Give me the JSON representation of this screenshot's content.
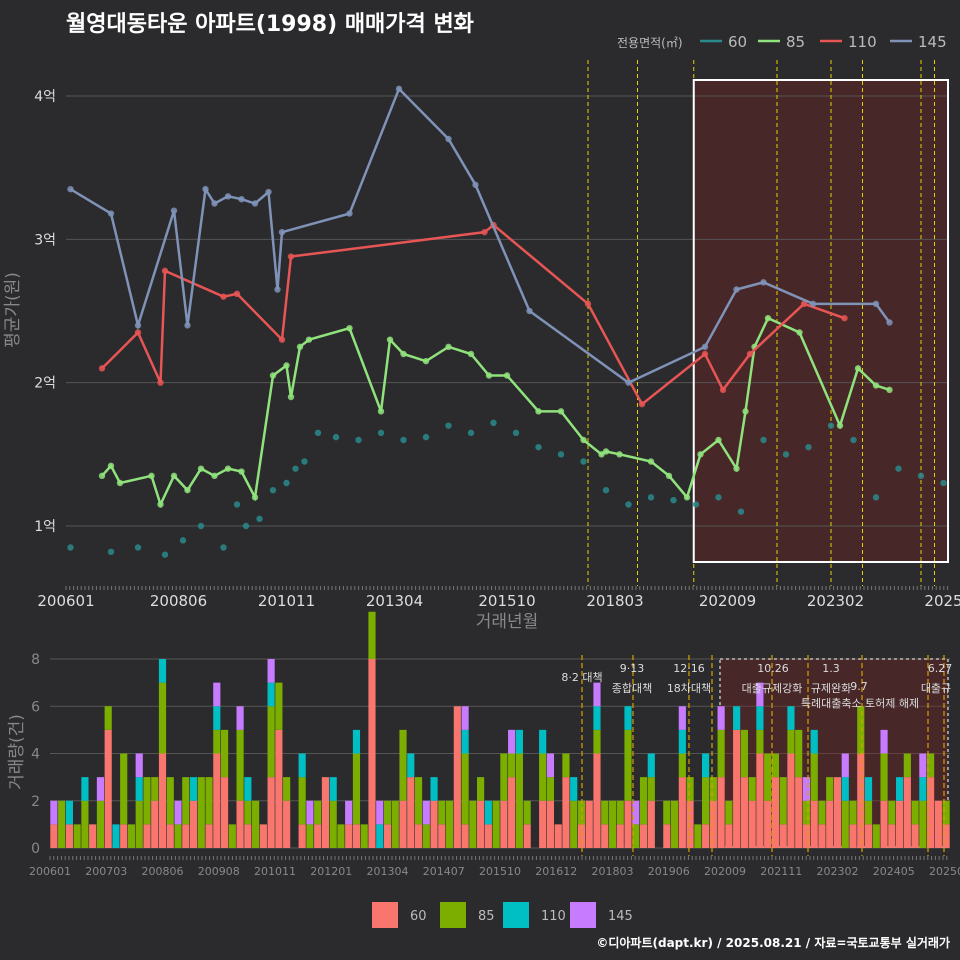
{
  "title": "월영대동타운 아파트(1998) 매매가격 변화",
  "footer": "©디아파트(dapt.kr) / 2025.08.21 / 자료=국토교통부 실거래가",
  "legend_title": "전용면적(㎡)",
  "colors": {
    "bg": "#2b2b2d",
    "s60": "#2a8a8c",
    "s85": "#90e37c",
    "s110": "#e85555",
    "s145": "#7f93b8",
    "v60": "#f8766d",
    "v85": "#7cae00",
    "v110": "#00bfc4",
    "v145": "#c77cff",
    "grid": "#555555",
    "policy": "#e6d200",
    "policy2": "#d9a000",
    "highlight": "#7a1f1f"
  },
  "chart_data": [
    {
      "type": "line",
      "title": "월영대동타운 아파트(1998) 매매가격 변화",
      "xlabel": "거래년월",
      "ylabel": "평균가(원)",
      "x_ticks": [
        "200601",
        "200806",
        "201011",
        "201304",
        "201510",
        "201803",
        "202009",
        "202302",
        "2025"
      ],
      "y_ticks": [
        "1억",
        "2억",
        "3억",
        "4억"
      ],
      "ylim": [
        0.6,
        4.25
      ],
      "unit": "억원",
      "series": [
        {
          "name": "60",
          "x": [
            2006.1,
            2007.0,
            2007.6,
            2008.2,
            2008.6,
            2009.0,
            2009.5,
            2009.8,
            2010.0,
            2010.3,
            2010.6,
            2010.9,
            2011.1,
            2011.3,
            2011.6,
            2012.0,
            2012.5,
            2013.0,
            2013.5,
            2014.0,
            2014.5,
            2015.0,
            2015.5,
            2016.0,
            2016.5,
            2017.0,
            2017.5,
            2018.0,
            2018.5,
            2019.0,
            2019.5,
            2020.0,
            2020.5,
            2021.0,
            2021.5,
            2022.0,
            2022.5,
            2023.0,
            2023.5,
            2024.0,
            2024.5,
            2025.0,
            2025.5
          ],
          "values": [
            0.85,
            0.82,
            0.85,
            0.8,
            0.9,
            1.0,
            0.85,
            1.15,
            1.0,
            1.05,
            1.25,
            1.3,
            1.4,
            1.45,
            1.65,
            1.62,
            1.6,
            1.65,
            1.6,
            1.62,
            1.7,
            1.65,
            1.72,
            1.65,
            1.55,
            1.5,
            1.45,
            1.25,
            1.15,
            1.2,
            1.18,
            1.15,
            1.2,
            1.1,
            1.6,
            1.5,
            1.55,
            1.7,
            1.6,
            1.2,
            1.4,
            1.35,
            1.3
          ]
        },
        {
          "name": "85",
          "x": [
            2006.8,
            2007.0,
            2007.2,
            2007.9,
            2008.1,
            2008.4,
            2008.7,
            2009.0,
            2009.3,
            2009.6,
            2009.9,
            2010.2,
            2010.6,
            2010.9,
            2011.0,
            2011.2,
            2011.4,
            2012.3,
            2013.0,
            2013.2,
            2013.5,
            2014.0,
            2014.5,
            2015.0,
            2015.4,
            2015.8,
            2016.5,
            2017.0,
            2017.5,
            2017.9,
            2018.0,
            2018.3,
            2019.0,
            2019.4,
            2019.8,
            2020.1,
            2020.5,
            2020.9,
            2021.1,
            2021.3,
            2021.6,
            2022.3,
            2023.2,
            2023.6,
            2024.0,
            2024.3
          ],
          "values": [
            1.35,
            1.42,
            1.3,
            1.35,
            1.15,
            1.35,
            1.25,
            1.4,
            1.35,
            1.4,
            1.38,
            1.2,
            2.05,
            2.12,
            1.9,
            2.25,
            2.3,
            2.38,
            1.8,
            2.3,
            2.2,
            2.15,
            2.25,
            2.2,
            2.05,
            2.05,
            1.8,
            1.8,
            1.6,
            1.5,
            1.52,
            1.5,
            1.45,
            1.35,
            1.2,
            1.5,
            1.6,
            1.4,
            1.8,
            2.25,
            2.45,
            2.35,
            1.7,
            2.1,
            1.98,
            1.95
          ]
        },
        {
          "name": "110",
          "x": [
            2006.8,
            2007.6,
            2008.1,
            2008.2,
            2009.5,
            2009.8,
            2010.8,
            2011.0,
            2015.3,
            2015.5,
            2017.6,
            2018.8,
            2020.2,
            2020.6,
            2021.2,
            2022.4,
            2023.3
          ],
          "values": [
            2.1,
            2.35,
            2.0,
            2.78,
            2.6,
            2.62,
            2.3,
            2.88,
            3.05,
            3.1,
            2.55,
            1.85,
            2.2,
            1.95,
            2.2,
            2.55,
            2.45
          ]
        },
        {
          "name": "145",
          "x": [
            2006.1,
            2007.0,
            2007.6,
            2008.4,
            2008.7,
            2009.1,
            2009.3,
            2009.6,
            2009.9,
            2010.2,
            2010.5,
            2010.7,
            2010.8,
            2012.3,
            2013.4,
            2014.5,
            2015.1,
            2016.3,
            2018.5,
            2020.2,
            2020.9,
            2021.5,
            2022.6,
            2024.0,
            2024.3
          ],
          "values": [
            3.35,
            3.18,
            2.4,
            3.2,
            2.4,
            3.35,
            3.25,
            3.3,
            3.28,
            3.25,
            3.33,
            2.65,
            3.05,
            3.18,
            4.05,
            3.7,
            3.38,
            2.5,
            2.0,
            2.25,
            2.65,
            2.7,
            2.55,
            2.55,
            2.42
          ]
        }
      ],
      "policy_labels": []
    },
    {
      "type": "bar",
      "title": "",
      "ylabel": "거래량(건)",
      "x_ticks": [
        "200601",
        "200703",
        "200806",
        "200908",
        "201011",
        "201201",
        "201304",
        "201407",
        "201510",
        "201612",
        "201803",
        "201906",
        "202009",
        "202111",
        "202302",
        "202405",
        "202508"
      ],
      "y_ticks": [
        "0",
        "2",
        "4",
        "6",
        "8"
      ],
      "ylim": [
        0,
        8.5
      ],
      "series": [
        {
          "name": "60",
          "values": [
            1,
            0,
            1,
            0,
            0,
            1,
            0,
            5,
            0,
            1,
            0,
            0,
            1,
            2,
            4,
            1,
            0,
            1,
            2,
            0,
            1,
            4,
            3,
            0,
            2,
            1,
            0,
            1,
            3,
            5,
            2,
            0,
            1,
            0,
            1,
            3,
            0,
            0,
            1,
            1,
            0,
            8,
            0,
            1,
            0,
            2,
            3,
            1,
            0,
            2,
            1,
            0,
            6,
            1,
            0,
            2,
            1,
            0,
            2,
            3,
            0,
            1,
            0,
            2,
            2,
            1,
            3,
            0,
            1,
            2,
            4,
            1,
            0,
            1,
            2,
            0,
            1,
            2,
            0,
            1,
            0,
            3,
            2,
            0,
            1,
            2,
            3,
            1,
            5,
            3,
            2,
            4,
            2,
            3,
            1,
            4,
            3,
            1,
            2,
            1,
            2,
            3,
            0,
            1,
            4,
            1,
            0,
            2,
            1,
            2,
            3,
            1,
            0,
            3,
            2,
            1
          ]
        },
        {
          "name": "85",
          "values": [
            0,
            2,
            0,
            1,
            2,
            0,
            2,
            1,
            0,
            3,
            1,
            2,
            2,
            1,
            3,
            2,
            1,
            2,
            0,
            3,
            2,
            1,
            2,
            1,
            3,
            1,
            2,
            0,
            3,
            2,
            1,
            0,
            2,
            1,
            1,
            0,
            2,
            1,
            0,
            3,
            1,
            2,
            0,
            1,
            2,
            3,
            0,
            2,
            1,
            0,
            1,
            2,
            0,
            3,
            2,
            1,
            0,
            2,
            2,
            1,
            4,
            1,
            0,
            2,
            1,
            0,
            1,
            2,
            1,
            0,
            1,
            1,
            2,
            1,
            3,
            1,
            2,
            1,
            0,
            1,
            2,
            1,
            1,
            1,
            2,
            1,
            2,
            1,
            0,
            2,
            1,
            1,
            2,
            1,
            2,
            1,
            2,
            1,
            2,
            1,
            1,
            0,
            2,
            1,
            2,
            1,
            1,
            2,
            1,
            0,
            1,
            1,
            2,
            1,
            0,
            1
          ]
        },
        {
          "name": "110",
          "values": [
            0,
            0,
            1,
            0,
            1,
            0,
            0,
            0,
            1,
            0,
            0,
            1,
            0,
            0,
            1,
            0,
            0,
            0,
            1,
            0,
            0,
            1,
            0,
            0,
            0,
            1,
            0,
            0,
            1,
            0,
            0,
            0,
            1,
            0,
            0,
            0,
            1,
            0,
            0,
            1,
            0,
            0,
            1,
            0,
            0,
            0,
            1,
            0,
            0,
            1,
            0,
            0,
            0,
            1,
            0,
            0,
            1,
            0,
            0,
            0,
            1,
            0,
            0,
            1,
            0,
            0,
            0,
            1,
            0,
            0,
            1,
            0,
            0,
            0,
            1,
            0,
            0,
            1,
            0,
            0,
            0,
            1,
            0,
            0,
            1,
            0,
            0,
            0,
            1,
            0,
            0,
            1,
            0,
            0,
            0,
            1,
            0,
            0,
            1,
            0,
            0,
            0,
            1,
            0,
            0,
            1,
            0,
            0,
            0,
            1,
            0,
            0,
            1,
            0,
            0,
            0
          ]
        },
        {
          "name": "145",
          "values": [
            1,
            0,
            0,
            0,
            0,
            0,
            1,
            0,
            0,
            0,
            0,
            1,
            0,
            0,
            0,
            0,
            1,
            0,
            0,
            0,
            0,
            1,
            0,
            0,
            1,
            0,
            0,
            0,
            1,
            0,
            0,
            0,
            0,
            1,
            0,
            0,
            0,
            0,
            1,
            0,
            0,
            0,
            1,
            0,
            0,
            0,
            0,
            0,
            1,
            0,
            0,
            0,
            0,
            1,
            0,
            0,
            0,
            0,
            0,
            1,
            0,
            0,
            0,
            0,
            1,
            0,
            0,
            0,
            0,
            0,
            1,
            0,
            0,
            0,
            0,
            1,
            0,
            0,
            0,
            0,
            0,
            1,
            0,
            0,
            0,
            0,
            1,
            0,
            0,
            0,
            0,
            1,
            0,
            0,
            0,
            0,
            0,
            1,
            0,
            0,
            0,
            0,
            1,
            0,
            0,
            0,
            0,
            1,
            0,
            0,
            0,
            0,
            1,
            0,
            0,
            0
          ]
        }
      ],
      "policy_labels": [
        "8·2 대책",
        "9·13",
        "종합대책",
        "12·16",
        "18차대책",
        "10.26",
        "대출규제강화",
        "1.3",
        "규제완화",
        "9.7",
        "특례대출축소 토허제 해제",
        "6.27",
        "대출규"
      ]
    }
  ]
}
